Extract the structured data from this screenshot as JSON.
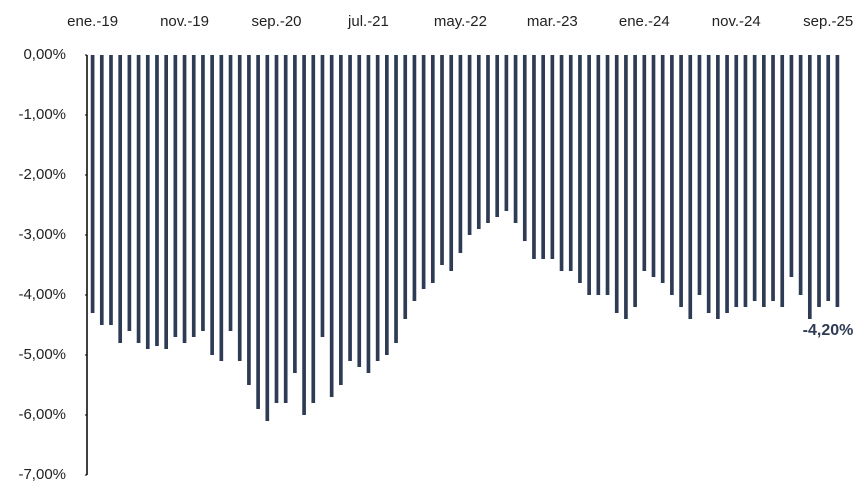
{
  "chart_data": {
    "type": "bar",
    "categories": [
      "ene.-19",
      null,
      null,
      null,
      null,
      null,
      null,
      null,
      null,
      null,
      "nov.-19",
      null,
      null,
      null,
      null,
      null,
      null,
      null,
      null,
      null,
      "sep.-20",
      null,
      null,
      null,
      null,
      null,
      null,
      null,
      null,
      null,
      "jul.-21",
      null,
      null,
      null,
      null,
      null,
      null,
      null,
      null,
      null,
      "may.-22",
      null,
      null,
      null,
      null,
      null,
      null,
      null,
      null,
      null,
      "mar.-23",
      null,
      null,
      null,
      null,
      null,
      null,
      null,
      null,
      null,
      "ene.-24",
      null,
      null,
      null,
      null,
      null,
      null,
      null,
      null,
      null,
      "nov.-24",
      null,
      null,
      null,
      null,
      null,
      null,
      null,
      null,
      null,
      "sep.-25",
      null
    ],
    "values": [
      -4.3,
      -4.5,
      -4.5,
      -4.8,
      -4.6,
      -4.8,
      -4.9,
      -4.85,
      -4.9,
      -4.7,
      -4.8,
      -4.7,
      -4.6,
      -5.0,
      -5.1,
      -4.6,
      -5.1,
      -5.5,
      -5.9,
      -6.1,
      -5.8,
      -5.8,
      -5.3,
      -6.0,
      -5.8,
      -4.7,
      -5.7,
      -5.5,
      -5.1,
      -5.2,
      -5.3,
      -5.1,
      -5.0,
      -4.8,
      -4.4,
      -4.1,
      -3.9,
      -3.8,
      -3.5,
      -3.6,
      -3.3,
      -3.0,
      -2.9,
      -2.8,
      -2.7,
      -2.6,
      -2.8,
      -3.1,
      -3.4,
      -3.4,
      -3.4,
      -3.6,
      -3.6,
      -3.8,
      -4.0,
      -4.0,
      -4.0,
      -4.3,
      -4.4,
      -4.2,
      -3.6,
      -3.7,
      -3.8,
      -4.0,
      -4.2,
      -4.4,
      -4.0,
      -4.3,
      -4.4,
      -4.3,
      -4.2,
      -4.2,
      -4.1,
      -4.2,
      -4.1,
      -4.2,
      -3.7,
      -4.0,
      -4.4,
      -4.2,
      -4.1,
      -4.2
    ],
    "value_labels": [
      null,
      null,
      null,
      null,
      null,
      null,
      null,
      null,
      null,
      null,
      null,
      null,
      null,
      null,
      null,
      null,
      null,
      null,
      null,
      null,
      null,
      null,
      null,
      null,
      null,
      null,
      null,
      null,
      null,
      null,
      null,
      null,
      null,
      null,
      null,
      null,
      null,
      null,
      null,
      null,
      null,
      null,
      null,
      null,
      null,
      null,
      null,
      null,
      null,
      null,
      null,
      null,
      null,
      null,
      null,
      null,
      null,
      null,
      null,
      null,
      null,
      null,
      null,
      null,
      null,
      null,
      null,
      null,
      null,
      null,
      null,
      null,
      null,
      null,
      null,
      null,
      null,
      null,
      null,
      null,
      null,
      "-4,20%"
    ],
    "color": "#2e3b55",
    "ylim": [
      -7,
      0
    ],
    "yticks": [
      {
        "value": 0,
        "label": "0,00%"
      },
      {
        "value": -1,
        "label": "-1,00%"
      },
      {
        "value": -2,
        "label": "-2,00%"
      },
      {
        "value": -3,
        "label": "-3,00%"
      },
      {
        "value": -4,
        "label": "-4,00%"
      },
      {
        "value": -5,
        "label": "-5,00%"
      },
      {
        "value": -6,
        "label": "-6,00%"
      },
      {
        "value": -7,
        "label": "-7,00%"
      }
    ],
    "grid": false
  }
}
